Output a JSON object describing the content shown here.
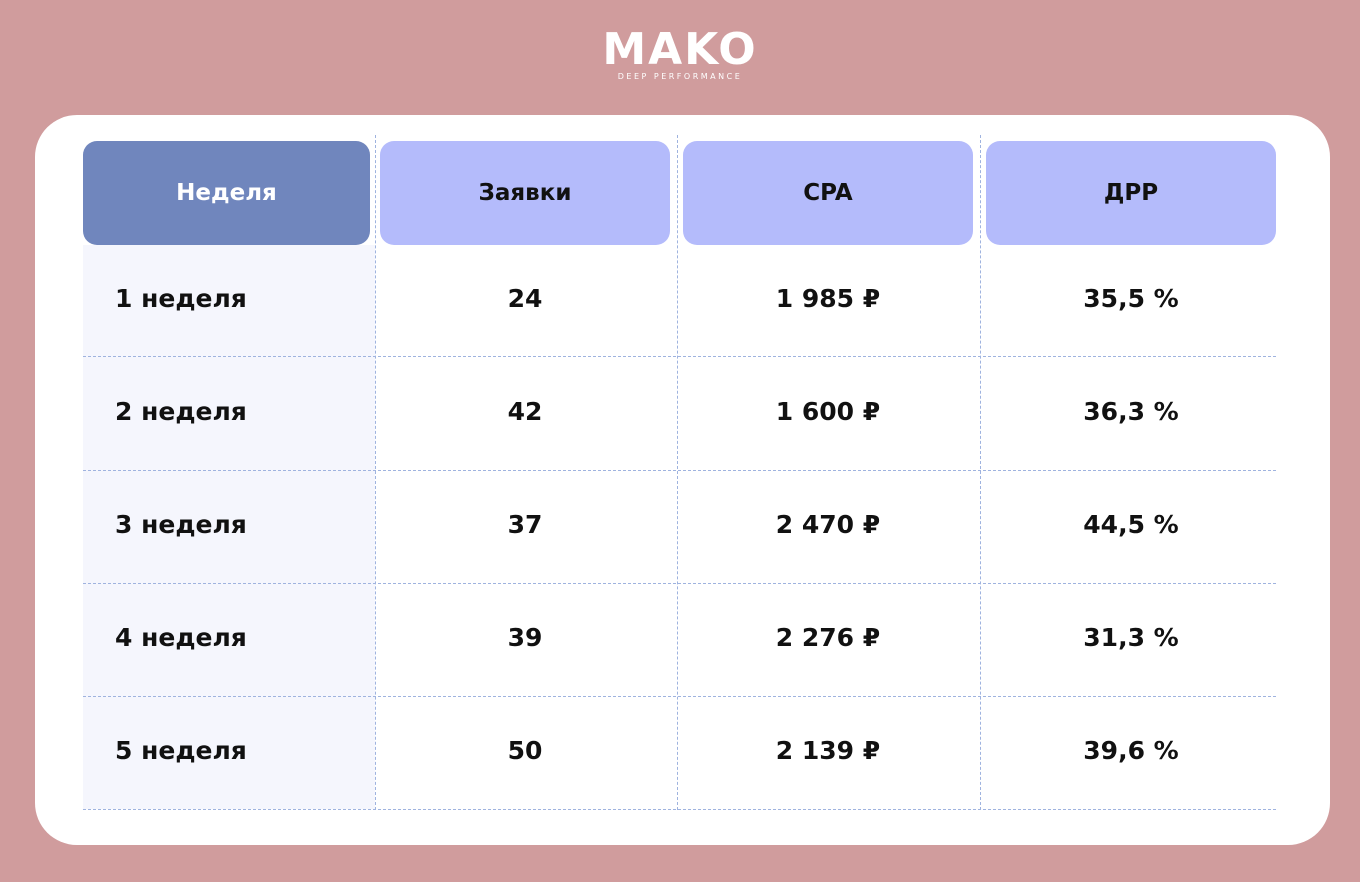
{
  "header": {
    "logo": "MAKO",
    "tagline": "DEEP PERFORMANCE"
  },
  "table": {
    "columns": [
      "Неделя",
      "Заявки",
      "CPA",
      "ДРР"
    ],
    "rows": [
      [
        "1 неделя",
        "24",
        "1 985 ₽",
        "35,5 %"
      ],
      [
        "2 неделя",
        "42",
        "1 600 ₽",
        "36,3 %"
      ],
      [
        "3 неделя",
        "37",
        "2 470 ₽",
        "44,5 %"
      ],
      [
        "4 неделя",
        "39",
        "2 276 ₽",
        "31,3 %"
      ],
      [
        "5 неделя",
        "50",
        "2 139 ₽",
        "39,6 %"
      ]
    ]
  }
}
